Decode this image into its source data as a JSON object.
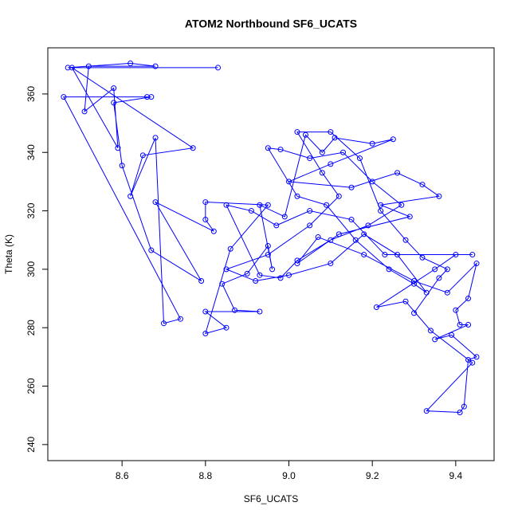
{
  "chart_data": {
    "type": "line",
    "title": "ATOM2 Northbound SF6_UCATS",
    "x_label": "SF6_UCATS",
    "y_label": "Theta (K)",
    "xlim": [
      8.422,
      9.492
    ],
    "ylim": [
      234.5,
      375.8
    ],
    "xticks": [
      8.6,
      8.8,
      {
        "value": 9.0,
        "label": "9.0"
      },
      9.2,
      9.4
    ],
    "yticks": [
      240,
      260,
      280,
      300,
      320,
      340,
      360
    ],
    "x": [
      8.83,
      8.47,
      8.62,
      8.68,
      8.52,
      8.51,
      8.58,
      8.59,
      8.48,
      8.77,
      8.65,
      8.62,
      8.68,
      8.7,
      8.74,
      8.46,
      8.66,
      8.67,
      8.58,
      8.6,
      8.67,
      8.79,
      8.68,
      8.82,
      8.8,
      8.8,
      8.95,
      8.86,
      8.8,
      8.85,
      8.8,
      8.93,
      8.87,
      8.84,
      8.9,
      8.95,
      8.96,
      8.93,
      8.99,
      9.04,
      9.08,
      9.11,
      9.2,
      9.25,
      9.1,
      9.0,
      9.15,
      9.26,
      9.32,
      9.36,
      9.22,
      9.29,
      9.12,
      9.02,
      9.07,
      9.18,
      9.3,
      9.38,
      9.45,
      9.43,
      9.4,
      9.41,
      9.43,
      9.35,
      9.39,
      9.45,
      9.43,
      9.42,
      9.41,
      9.33,
      9.44,
      9.34,
      9.28,
      9.21,
      9.35,
      9.4,
      9.44,
      9.23,
      9.15,
      9.05,
      8.97,
      8.91,
      8.85,
      8.93,
      8.98,
      9.02,
      9.1,
      9.19,
      9.27,
      9.2,
      9.13,
      9.05,
      8.98,
      8.95,
      9.02,
      9.09,
      9.16,
      9.24,
      9.3,
      9.33,
      9.26,
      9.18,
      9.1,
      9.0,
      8.92,
      8.85,
      8.95,
      9.05,
      9.12,
      9.08,
      9.02,
      9.1,
      9.17,
      9.22,
      9.28,
      9.32,
      9.38,
      9.36,
      9.3
    ],
    "series": [
      {
        "color": "#0000ff",
        "values": [
          369,
          369,
          370.5,
          369.5,
          369.5,
          354,
          362,
          341.5,
          369,
          341.5,
          339,
          325,
          345,
          281.5,
          283,
          359,
          359,
          359,
          357,
          335.5,
          306.5,
          296,
          323,
          313,
          317,
          323,
          322,
          307,
          278,
          280,
          285.5,
          285.5,
          286,
          295,
          298.5,
          308,
          300,
          322,
          318,
          346,
          340,
          345,
          343,
          344.5,
          336,
          330,
          328,
          333,
          329,
          325,
          322,
          318,
          312,
          302,
          311,
          305,
          296,
          292,
          302,
          290,
          286,
          281,
          281,
          276,
          277.5,
          270,
          269,
          253,
          251,
          251.5,
          268,
          279,
          289,
          287,
          300,
          305,
          305,
          305,
          317,
          320,
          315,
          320,
          322,
          298,
          297,
          303,
          310,
          315,
          322,
          330,
          340,
          338,
          341,
          341.5,
          325,
          322,
          310,
          300,
          295,
          292,
          305,
          312,
          302,
          298,
          296,
          300,
          305,
          315,
          325,
          333,
          347,
          347,
          338,
          320,
          310,
          304,
          300,
          297,
          285
        ]
      }
    ]
  }
}
